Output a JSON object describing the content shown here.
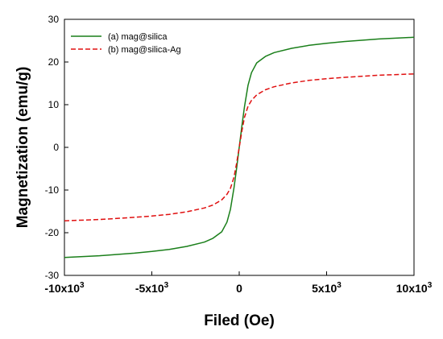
{
  "chart_data": {
    "type": "line",
    "xlabel": "Filed (Oe)",
    "ylabel": "Magnetization (emu/g)",
    "xlim": [
      -10000,
      10000
    ],
    "ylim": [
      -30,
      30
    ],
    "x_ticks": [
      {
        "value": -10000,
        "mantissa": "-10x10",
        "exp": "3"
      },
      {
        "value": -5000,
        "mantissa": "-5x10",
        "exp": "3"
      },
      {
        "value": 0,
        "mantissa": "0",
        "exp": ""
      },
      {
        "value": 5000,
        "mantissa": "5x10",
        "exp": "3"
      },
      {
        "value": 10000,
        "mantissa": "10x10",
        "exp": "3"
      }
    ],
    "y_ticks": [
      -30,
      -20,
      -10,
      0,
      10,
      20,
      30
    ],
    "grid": false,
    "legend_position": "top-left",
    "series": [
      {
        "name": "(a) mag@silica",
        "color": "#1a7f1a",
        "dash": "solid",
        "x": [
          -10000,
          -8000,
          -6000,
          -5000,
          -4000,
          -3000,
          -2000,
          -1500,
          -1000,
          -700,
          -500,
          -300,
          -150,
          0,
          150,
          300,
          500,
          700,
          1000,
          1500,
          2000,
          3000,
          4000,
          5000,
          6000,
          8000,
          10000
        ],
        "y": [
          -25.8,
          -25.4,
          -24.8,
          -24.4,
          -23.9,
          -23.2,
          -22.2,
          -21.3,
          -19.8,
          -17.5,
          -14.5,
          -9.5,
          -5.0,
          0.0,
          5.0,
          9.5,
          14.5,
          17.5,
          19.8,
          21.3,
          22.2,
          23.2,
          23.9,
          24.4,
          24.8,
          25.4,
          25.8
        ]
      },
      {
        "name": "(b) mag@silica-Ag",
        "color": "#e01010",
        "dash": "dashed",
        "x": [
          -10000,
          -8000,
          -6000,
          -5000,
          -4000,
          -3000,
          -2000,
          -1500,
          -1000,
          -700,
          -500,
          -300,
          -150,
          0,
          150,
          300,
          500,
          700,
          1000,
          1500,
          2000,
          3000,
          4000,
          5000,
          6000,
          8000,
          10000
        ],
        "y": [
          -17.2,
          -16.9,
          -16.4,
          -16.1,
          -15.7,
          -15.1,
          -14.2,
          -13.5,
          -12.3,
          -11.0,
          -9.6,
          -7.0,
          -3.8,
          0.0,
          3.8,
          7.0,
          9.6,
          11.0,
          12.3,
          13.5,
          14.2,
          15.1,
          15.7,
          16.1,
          16.4,
          16.9,
          17.2
        ]
      }
    ]
  }
}
